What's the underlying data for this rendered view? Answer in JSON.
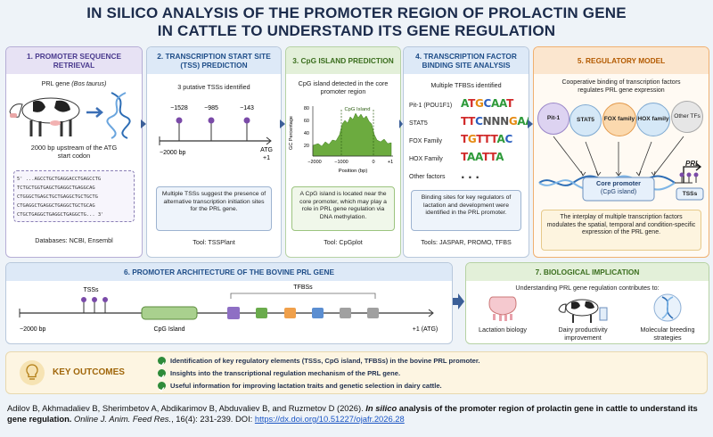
{
  "title": {
    "line1": "IN SILICO ANALYSIS OF THE PROMOTER REGION OF PROLACTIN GENE",
    "line2": "IN CATTLE TO UNDERSTAND ITS GENE REGULATION"
  },
  "step1": {
    "heading": "1. PROMOTER SEQUENCE RETRIEVAL",
    "gene": "PRL gene",
    "species": "(Bos taurus)",
    "description": "2000 bp upstream of the ATG start codon",
    "sequence": [
      "5' ...AGCCTGCTGAGGACCTGAGCCTG",
      "TCTGCTGGTGAGCTGAGGCTGAGGCAG",
      "CTGGGCTGAGCTGCTGAGGCTGCTGCTG",
      "CTGAGGCTGAGGCTGAGGCTGCTGCAG",
      "CTGCTGAGGCTGAGGCTGAGGCTG... 3'"
    ],
    "databases": "Databases: NCBI, Ensembl"
  },
  "step2": {
    "heading": "2. TRANSCRIPTION START SITE (TSS) PREDICTION",
    "summary": "3 putative TSSs identified",
    "tss_labels": [
      "−1528",
      "−985",
      "−143"
    ],
    "start_label": "−2000 bp",
    "atg": "ATG",
    "plus_one": "+1",
    "note": "Multiple TSSs suggest the presence of alternative transcription initiation sites for the PRL gene.",
    "tool": "Tool: TSSPlant"
  },
  "step3": {
    "heading": "3. CpG ISLAND PREDICTION",
    "summary": "CpG island detected in the core promoter region",
    "y_axis_label": "GC Percentage",
    "y_tick_labels": [
      "80",
      "60",
      "40",
      "20"
    ],
    "x_tick_labels": [
      "−2000",
      "−1000",
      "0",
      "+1"
    ],
    "x_axis_label": "Position (bp)",
    "island_label": "CpG Island",
    "note": "A CpG island is located near the core promoter, which may play a role in PRL gene regulation via DNA methylation.",
    "tool": "Tool: CpGplot"
  },
  "step4": {
    "heading": "4. TRANSCRIPTION FACTOR BINDING SITE ANALYSIS",
    "summary": "Multiple TFBSs identified",
    "factors": [
      {
        "name": "Pit-1 (POU1F1)",
        "motif": "ATGCAAT"
      },
      {
        "name": "STAT5",
        "motif": "TTCNNNGAA"
      },
      {
        "name": "FOX Family",
        "motif": "TGTTTAC"
      },
      {
        "name": "HOX Family",
        "motif": "TAATTA"
      },
      {
        "name": "Other factors",
        "motif": ". . ."
      }
    ],
    "note": "Binding sites for key regulators of lactation and development were identified in the PRL promoter.",
    "tools": "Tools: JASPAR, PROMO, TFBS"
  },
  "step5": {
    "heading": "5. REGULATORY MODEL",
    "summary": "Cooperative binding of transcription factors regulates PRL gene expression",
    "factors": [
      "Pit-1",
      "STAT5",
      "FOX family",
      "HOX family",
      "Other TFs"
    ],
    "core_promoter": "Core promoter",
    "core_promoter_sub": "(CpG island)",
    "gene": "PRL",
    "tss": "TSSs",
    "note": "The interplay of multiple transcription factors modulates the spatial, temporal and condition-specific expression of the PRL gene."
  },
  "step6": {
    "heading": "6. PROMOTER ARCHITECTURE OF THE BOVINE PRL GENE",
    "tss": "TSSs",
    "tfbs": "TFBSs",
    "cpg": "CpG Island",
    "start": "−2000 bp",
    "end": "+1 (ATG)"
  },
  "step7": {
    "heading": "7. BIOLOGICAL IMPLICATION",
    "summary": "Understanding PRL gene regulation contributes to:",
    "items": [
      "Lactation biology",
      "Dairy productivity improvement",
      "Molecular breeding strategies"
    ]
  },
  "outcomes": {
    "heading": "KEY OUTCOMES",
    "items": [
      "Identification of key regulatory elements (TSSs, CpG island, TFBSs) in the bovine PRL promoter.",
      "Insights into the transcriptional regulation mechanism of the PRL gene.",
      "Useful information for improving lactation traits and genetic selection in dairy cattle."
    ]
  },
  "citation": {
    "authors": "Adilov B, Akhmadaliev B, Sherimbetov A, Abdikarimov B, Abduvaliev B, and Ruzmetov D (2026). ",
    "title_italic": "In silico",
    "title_rest": " analysis of the promoter region of prolactin gene in cattle to understand its gene regulation.",
    "journal": " Online J. Anim. Feed Res.",
    "details": ", 16(4): 231-239. DOI: ",
    "doi": "https://dx.doi.org/10.51227/ojafr.2026.28"
  }
}
